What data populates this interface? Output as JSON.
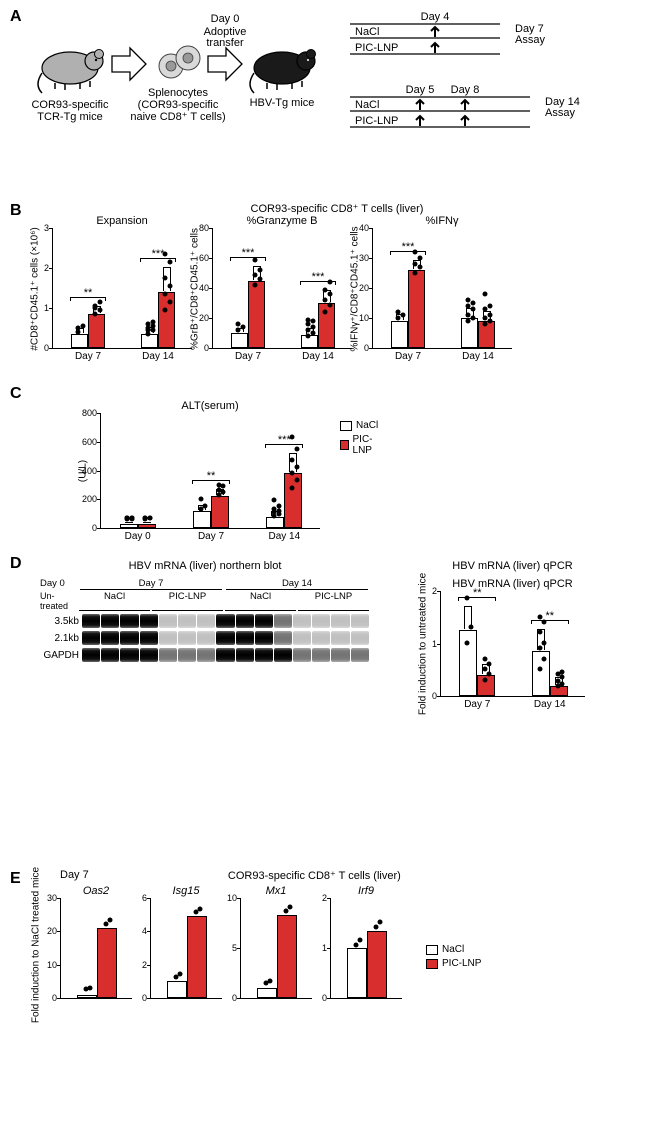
{
  "colors": {
    "nacl": "#ffffff",
    "piclnp": "#d92e2e",
    "edge": "#000000",
    "dot": "#000000",
    "bg": "#ffffff"
  },
  "font": {
    "base_size": 11,
    "weight_bold": 700
  },
  "panelA": {
    "donor_label": "COR93-specific\nTCR-Tg mice",
    "spleno_label": "Splenocytes\n(COR93-specific\nnaive CD8⁺ T cells)",
    "day0": "Day 0",
    "adoptive": "Adoptive\ntransfer",
    "recipient_label": "HBV-Tg mice",
    "day4": "Day 4",
    "day7": "Day 7\nAssay",
    "day5": "Day 5",
    "day8": "Day 8",
    "day14": "Day 14\nAssay",
    "nacl": "NaCl",
    "piclnp": "PIC-LNP"
  },
  "panelB": {
    "section_title": "COR93-specific CD8⁺ T cells (liver)",
    "charts": [
      {
        "title": "Expansion",
        "ylabel": "#CD8⁺CD45.1⁺ cells (×10⁶)",
        "ylim": [
          0,
          3
        ],
        "yticks": [
          0,
          1.0,
          2.0,
          3.0
        ],
        "groups": [
          {
            "x": "Day 7",
            "nacl": {
              "mean": 0.35,
              "sd": 0.12,
              "pts": [
                0.35,
                0.4,
                0.25
              ]
            },
            "pic": {
              "mean": 0.85,
              "sd": 0.18,
              "pts": [
                0.7,
                0.8,
                0.9,
                1.0,
                0.85
              ]
            },
            "sig": "**"
          },
          {
            "x": "Day 14",
            "nacl": {
              "mean": 0.35,
              "sd": 0.15,
              "pts": [
                0.2,
                0.3,
                0.35,
                0.4,
                0.45,
                0.5,
                0.3
              ]
            },
            "pic": {
              "mean": 1.4,
              "sd": 0.6,
              "pts": [
                0.8,
                1.0,
                1.2,
                1.4,
                1.6,
                2.0,
                2.2
              ]
            },
            "sig": "***"
          }
        ]
      },
      {
        "title": "%Granzyme B",
        "ylabel": "%GrB⁺/CD8⁺CD45.1⁺ cells",
        "ylim": [
          0,
          80
        ],
        "yticks": [
          0,
          20,
          40,
          60,
          80
        ],
        "groups": [
          {
            "x": "Day 7",
            "nacl": {
              "mean": 10,
              "sd": 3,
              "pts": [
                8,
                10,
                12
              ]
            },
            "pic": {
              "mean": 45,
              "sd": 9,
              "pts": [
                38,
                42,
                45,
                48,
                55
              ]
            },
            "sig": "***"
          },
          {
            "x": "Day 14",
            "nacl": {
              "mean": 9,
              "sd": 4,
              "pts": [
                4,
                6,
                8,
                10,
                12,
                14,
                15
              ]
            },
            "pic": {
              "mean": 30,
              "sd": 8,
              "pts": [
                20,
                25,
                28,
                32,
                35,
                40
              ]
            },
            "sig": "***"
          }
        ]
      },
      {
        "title": "%IFNγ",
        "ylabel": "%IFNγ⁺/CD8⁺CD45.1⁺ cells",
        "ylim": [
          0,
          40
        ],
        "yticks": [
          0,
          10,
          20,
          30,
          40
        ],
        "groups": [
          {
            "x": "Day 7",
            "nacl": {
              "mean": 9,
              "sd": 2,
              "pts": [
                8,
                9,
                10
              ]
            },
            "pic": {
              "mean": 26,
              "sd": 3,
              "pts": [
                23,
                25,
                26,
                28,
                30
              ]
            },
            "sig": "***"
          },
          {
            "x": "Day 14",
            "nacl": {
              "mean": 10,
              "sd": 3,
              "pts": [
                7,
                8,
                9,
                11,
                12,
                13,
                14
              ]
            },
            "pic": {
              "mean": 9,
              "sd": 3,
              "pts": [
                6,
                7,
                8,
                9,
                11,
                12,
                16
              ]
            },
            "sig": ""
          }
        ]
      }
    ]
  },
  "panelC": {
    "title": "ALT(serum)",
    "ylabel": "(U/L)",
    "ylim": [
      0,
      800
    ],
    "yticks": [
      0,
      200,
      400,
      600,
      800
    ],
    "groups": [
      {
        "x": "Day 0",
        "nacl": {
          "mean": 25,
          "sd": 10,
          "pts": [
            20,
            25,
            30,
            20,
            25,
            30,
            28
          ]
        },
        "pic": {
          "mean": 25,
          "sd": 10,
          "pts": [
            20,
            25,
            30,
            25,
            30
          ]
        },
        "sig": ""
      },
      {
        "x": "Day 7",
        "nacl": {
          "mean": 115,
          "sd": 35,
          "pts": [
            90,
            110,
            160
          ]
        },
        "pic": {
          "mean": 225,
          "sd": 40,
          "pts": [
            190,
            210,
            225,
            250,
            260
          ]
        },
        "sig": "**"
      },
      {
        "x": "Day 14",
        "nacl": {
          "mean": 75,
          "sd": 35,
          "pts": [
            40,
            55,
            70,
            80,
            90,
            110,
            150
          ]
        },
        "pic": {
          "mean": 380,
          "sd": 135,
          "pts": [
            240,
            290,
            340,
            380,
            430,
            510,
            590
          ]
        },
        "sig": "***"
      }
    ],
    "legend": [
      {
        "label": "NaCl",
        "color": "#ffffff"
      },
      {
        "label": "PIC-LNP",
        "color": "#d92e2e"
      }
    ]
  },
  "panelD": {
    "left_title": "HBV mRNA (liver) northern blot",
    "header": {
      "day0": "Day 0",
      "day7": "Day 7",
      "day14": "Day 14",
      "untreated": "Un-\ntreated",
      "nacl": "NaCl",
      "piclnp": "PIC-LNP"
    },
    "row_labels": [
      "3.5kb",
      "2.1kb",
      "GAPDH"
    ],
    "lanes_count": 15,
    "lane_groups": [
      1,
      3,
      3,
      3,
      3,
      2
    ],
    "intensity": {
      "3.5kb": [
        "dark",
        "dark",
        "dark",
        "dark",
        "light",
        "light",
        "light",
        "dark",
        "dark",
        "dark",
        "med",
        "light",
        "light",
        "light",
        "light"
      ],
      "2.1kb": [
        "dark",
        "dark",
        "dark",
        "dark",
        "light",
        "light",
        "light",
        "dark",
        "dark",
        "dark",
        "med",
        "light",
        "light",
        "light",
        "light"
      ],
      "GAPDH": [
        "dark",
        "dark",
        "dark",
        "dark",
        "med",
        "med",
        "med",
        "dark",
        "dark",
        "dark",
        "dark",
        "med",
        "med",
        "med",
        "med"
      ]
    },
    "right": {
      "title": "HBV mRNA (liver) qPCR",
      "ylabel": "Fold induction\nto untreated mice",
      "ylim": [
        0,
        2
      ],
      "yticks": [
        0,
        1.0,
        2.0
      ],
      "groups": [
        {
          "x": "Day 7",
          "nacl": {
            "mean": 1.25,
            "sd": 0.45,
            "pts": [
              0.9,
              1.2,
              1.75
            ]
          },
          "pic": {
            "mean": 0.4,
            "sd": 0.2,
            "pts": [
              0.2,
              0.3,
              0.4,
              0.5,
              0.6
            ]
          },
          "sig": "**"
        },
        {
          "x": "Day 14",
          "nacl": {
            "mean": 0.85,
            "sd": 0.4,
            "pts": [
              0.4,
              0.6,
              0.8,
              0.9,
              1.1,
              1.3,
              1.4
            ]
          },
          "pic": {
            "mean": 0.2,
            "sd": 0.15,
            "pts": [
              0.08,
              0.12,
              0.18,
              0.25,
              0.3,
              0.35
            ]
          },
          "sig": "**"
        }
      ]
    }
  },
  "panelE": {
    "day_label": "Day 7",
    "section_title": "COR93-specific CD8⁺ T cells (liver)",
    "ylabel": "Fold induction to\nNaCl treated mice",
    "legend": [
      {
        "label": "NaCl",
        "color": "#ffffff"
      },
      {
        "label": "PIC-LNP",
        "color": "#d92e2e"
      }
    ],
    "charts": [
      {
        "title": "Oas2",
        "ylim": [
          0,
          30
        ],
        "yticks": [
          0,
          10,
          20,
          30
        ],
        "nacl": {
          "mean": 1,
          "pts": [
            0.9,
            1.1
          ]
        },
        "pic": {
          "mean": 21,
          "pts": [
            20.5,
            21.5
          ]
        }
      },
      {
        "title": "Isg15",
        "ylim": [
          0,
          6
        ],
        "yticks": [
          0,
          2,
          4,
          6
        ],
        "nacl": {
          "mean": 1,
          "pts": [
            0.9,
            1.1
          ]
        },
        "pic": {
          "mean": 4.9,
          "pts": [
            4.8,
            5.0
          ]
        }
      },
      {
        "title": "Mx1",
        "ylim": [
          0,
          10
        ],
        "yticks": [
          0,
          5,
          10
        ],
        "nacl": {
          "mean": 1,
          "pts": [
            0.9,
            1.1
          ]
        },
        "pic": {
          "mean": 8.3,
          "pts": [
            8.1,
            8.5
          ]
        }
      },
      {
        "title": "Irf9",
        "ylim": [
          0,
          2
        ],
        "yticks": [
          0,
          1,
          2
        ],
        "nacl": {
          "mean": 1,
          "pts": [
            0.95,
            1.05
          ]
        },
        "pic": {
          "mean": 1.35,
          "pts": [
            1.3,
            1.4
          ]
        }
      }
    ]
  }
}
